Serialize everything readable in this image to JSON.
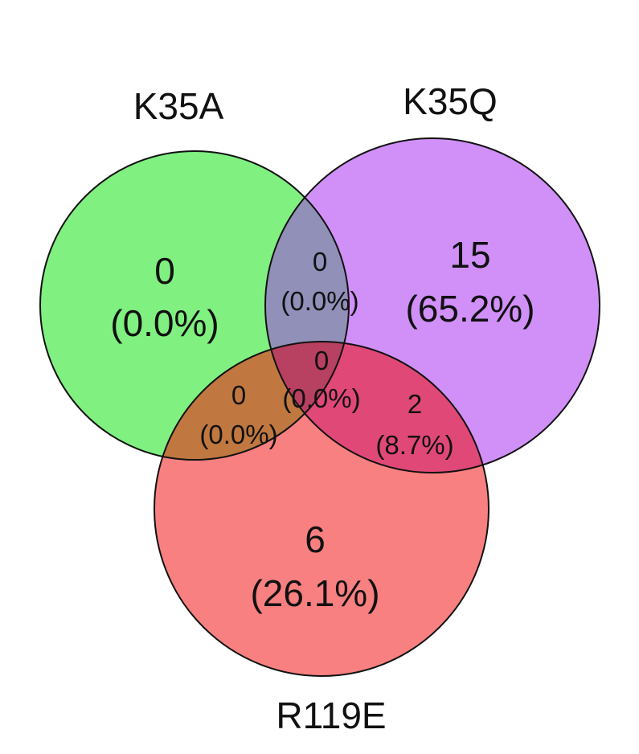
{
  "venn": {
    "sets": [
      {
        "name": "K35A",
        "color": "#80f080"
      },
      {
        "name": "K35Q",
        "color": "#d090f8"
      },
      {
        "name": "R119E",
        "color": "#f88080"
      }
    ],
    "regions": {
      "k35a_only": {
        "count": "0",
        "percent": "(0.0%)"
      },
      "k35q_only": {
        "count": "15",
        "percent": "(65.2%)"
      },
      "r119e_only": {
        "count": "6",
        "percent": "(26.1%)"
      },
      "k35a_k35q": {
        "count": "0",
        "percent": "(0.0%)"
      },
      "k35a_r119e": {
        "count": "0",
        "percent": "(0.0%)"
      },
      "k35q_r119e": {
        "count": "2",
        "percent": "(8.7%)"
      },
      "all_three": {
        "count": "0",
        "percent": "(0.0%)"
      }
    }
  }
}
